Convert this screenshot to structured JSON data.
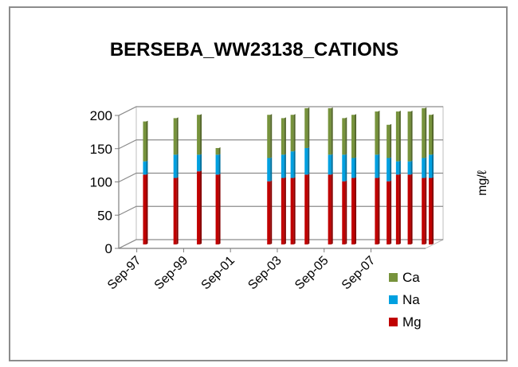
{
  "chart_data": {
    "type": "bar",
    "stacked": true,
    "three_d": true,
    "title": "BERSEBA_WW23138_CATIONS",
    "ylabel": "mg/ℓ",
    "xlabel": "",
    "ylim": [
      0,
      200
    ],
    "y_ticks": [
      "0",
      "50",
      "100",
      "150",
      "200"
    ],
    "x_ticks": [
      "Sep-97",
      "Sep-99",
      "Sep-01",
      "Sep-03",
      "Sep-05",
      "Sep-07"
    ],
    "x_tick_dates": [
      1997.67,
      1999.67,
      2001.67,
      2003.67,
      2005.67,
      2007.67
    ],
    "x_range": [
      1996.9,
      2010.0
    ],
    "grid": true,
    "legend_position": "bottom-right",
    "x_dates": [
      1997.6,
      1998.9,
      1999.9,
      2000.7,
      2002.9,
      2003.5,
      2003.9,
      2004.5,
      2005.5,
      2006.1,
      2006.5,
      2007.5,
      2008.0,
      2008.4,
      2008.9,
      2009.5,
      2009.8
    ],
    "series": [
      {
        "name": "Mg",
        "color": "#c00000",
        "values": [
          105,
          100,
          110,
          105,
          95,
          100,
          100,
          105,
          105,
          95,
          100,
          100,
          95,
          105,
          105,
          100,
          100
        ]
      },
      {
        "name": "Na",
        "color": "#00a0e0",
        "values": [
          20,
          35,
          25,
          30,
          35,
          35,
          40,
          40,
          30,
          40,
          30,
          35,
          35,
          20,
          20,
          30,
          35
        ]
      },
      {
        "name": "Ca",
        "color": "#77933c",
        "values": [
          60,
          55,
          60,
          10,
          65,
          55,
          55,
          60,
          70,
          55,
          65,
          65,
          50,
          75,
          75,
          75,
          60
        ]
      }
    ]
  }
}
